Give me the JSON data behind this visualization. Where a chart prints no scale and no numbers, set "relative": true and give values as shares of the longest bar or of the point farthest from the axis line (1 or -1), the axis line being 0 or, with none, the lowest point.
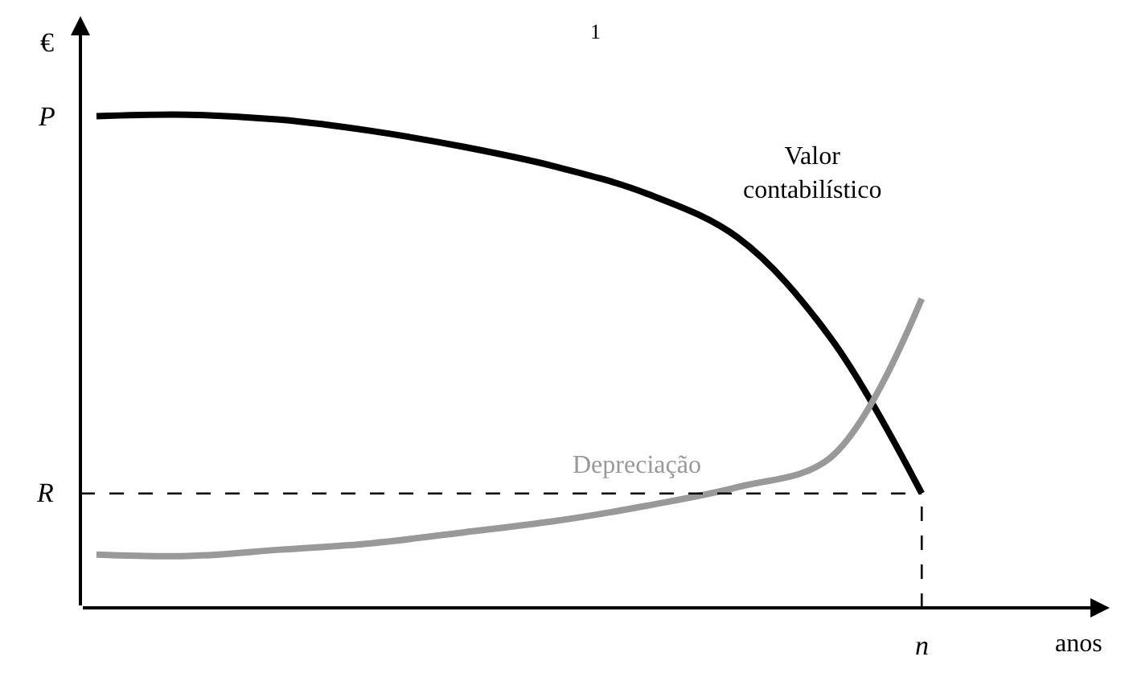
{
  "chart_data": {
    "type": "line",
    "relative": true,
    "ylabel": "€",
    "categories": [
      null,
      null,
      null,
      null,
      null,
      null,
      null,
      null,
      null,
      null
    ],
    "series": [
      {
        "name": "Valor contabilístico",
        "color": "#000000",
        "values": [
          0.997,
          1.0,
          0.99,
          0.967,
          0.935,
          0.895,
          0.84,
          0.75,
          0.549,
          0.232
        ]
      },
      {
        "name": "Depreciação",
        "color": "#999999",
        "values": [
          0.108,
          0.105,
          0.118,
          0.131,
          0.153,
          0.176,
          0.207,
          0.245,
          0.304,
          0.627
        ]
      }
    ],
    "ref_lines": [
      {
        "axis": "y",
        "value": 0.232,
        "label": "R",
        "color": "#000000",
        "line_style": "dashed"
      }
    ],
    "annotations": [
      "1",
      "P",
      "n",
      "anos"
    ],
    "legend": false,
    "marker": "none",
    "line_style": "solid"
  }
}
